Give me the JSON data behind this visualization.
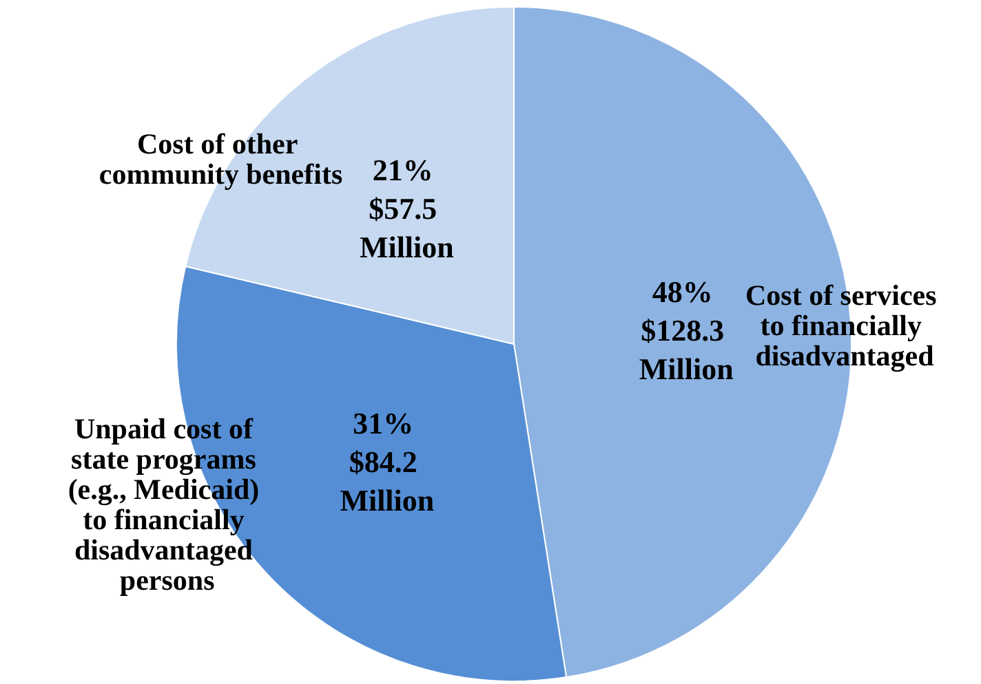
{
  "chart_data": {
    "type": "pie",
    "categories": [
      "Cost of services to financially disadvantaged",
      "Unpaid cost of state programs (e.g., Medicaid) to financially disadvantaged persons",
      "Cost of other community benefits"
    ],
    "values": [
      128.3,
      84.2,
      57.5
    ],
    "colors": [
      "#8db3e2",
      "#558ed5",
      "#c6d9f1"
    ],
    "value_labels": [
      "48% $128.3 Million",
      "31% $84.2 Million",
      "21% $57.5 Million"
    ],
    "legend": false
  }
}
